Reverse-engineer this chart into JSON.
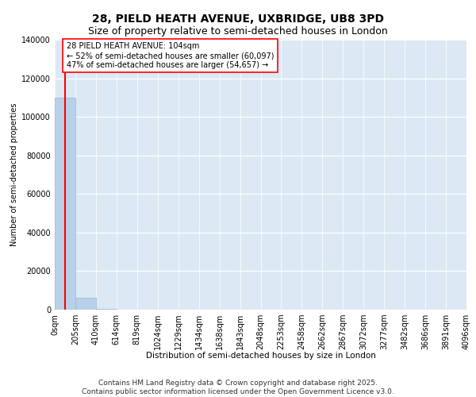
{
  "title": "28, PIELD HEATH AVENUE, UXBRIDGE, UB8 3PD",
  "subtitle": "Size of property relative to semi-detached houses in London",
  "xlabel": "Distribution of semi-detached houses by size in London",
  "ylabel": "Number of semi-detached properties",
  "bar_color": "#b8d0e8",
  "bar_edge_color": "#99b8d4",
  "property_line_color": "red",
  "annotation_text": "28 PIELD HEATH AVENUE: 104sqm\n← 52% of semi-detached houses are smaller (60,097)\n47% of semi-detached houses are larger (54,657) →",
  "property_size": 104,
  "bin_edges": [
    0,
    205,
    410,
    614,
    819,
    1024,
    1229,
    1434,
    1638,
    1843,
    2048,
    2253,
    2458,
    2662,
    2867,
    3072,
    3277,
    3482,
    3686,
    3891,
    4096
  ],
  "bin_labels": [
    "0sqm",
    "205sqm",
    "410sqm",
    "614sqm",
    "819sqm",
    "1024sqm",
    "1229sqm",
    "1434sqm",
    "1638sqm",
    "1843sqm",
    "2048sqm",
    "2253sqm",
    "2458sqm",
    "2662sqm",
    "2867sqm",
    "3072sqm",
    "3277sqm",
    "3482sqm",
    "3686sqm",
    "3891sqm",
    "4096sqm"
  ],
  "counts": [
    110000,
    6000,
    300,
    80,
    30,
    15,
    8,
    5,
    4,
    3,
    3,
    2,
    2,
    2,
    2,
    1,
    1,
    1,
    1,
    1
  ],
  "ylim": [
    0,
    140000
  ],
  "yticks": [
    0,
    20000,
    40000,
    60000,
    80000,
    100000,
    120000,
    140000
  ],
  "plot_bg_color": "#dce9f5",
  "footer_text": "Contains HM Land Registry data © Crown copyright and database right 2025.\nContains public sector information licensed under the Open Government Licence v3.0.",
  "title_fontsize": 10,
  "subtitle_fontsize": 9,
  "footer_fontsize": 6.5,
  "ylabel_fontsize": 7,
  "xlabel_fontsize": 7.5,
  "annotation_fontsize": 7,
  "tick_fontsize": 7
}
